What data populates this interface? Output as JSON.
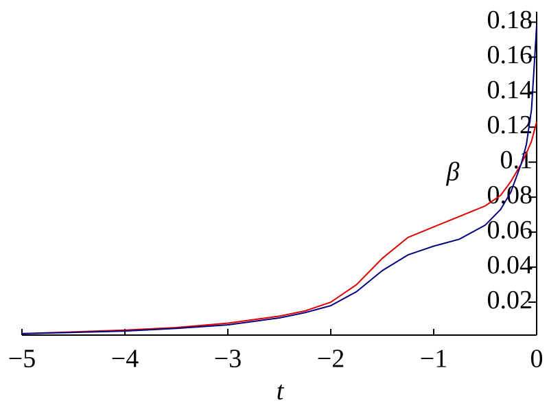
{
  "chart_data": {
    "type": "line",
    "x_label": "t",
    "y_label": "β",
    "x": [
      -5,
      -4.5,
      -4,
      -3.5,
      -3,
      -2.5,
      -2.25,
      -2,
      -1.75,
      -1.5,
      -1.25,
      -1,
      -0.75,
      -0.5,
      -0.35,
      -0.25,
      -0.15,
      -0.1,
      -0.05,
      0
    ],
    "series": [
      {
        "color": "#dd0000",
        "values": [
          0.002,
          0.003,
          0.004,
          0.0055,
          0.008,
          0.012,
          0.015,
          0.02,
          0.03,
          0.045,
          0.057,
          0.063,
          0.069,
          0.075,
          0.081,
          0.089,
          0.099,
          0.105,
          0.112,
          0.123
        ]
      },
      {
        "color": "#00007f",
        "values": [
          0.002,
          0.0027,
          0.0035,
          0.005,
          0.007,
          0.011,
          0.014,
          0.018,
          0.026,
          0.038,
          0.047,
          0.052,
          0.056,
          0.064,
          0.073,
          0.083,
          0.099,
          0.11,
          0.13,
          0.178
        ]
      }
    ],
    "xlim": [
      -5,
      0
    ],
    "ylim": [
      0,
      0.186
    ],
    "xticks": [
      {
        "value": -5,
        "label": "−5"
      },
      {
        "value": -4,
        "label": "−4"
      },
      {
        "value": -3,
        "label": "−3"
      },
      {
        "value": -2,
        "label": "−2"
      },
      {
        "value": -1,
        "label": "−1"
      },
      0
    ],
    "yticks": [
      0.02,
      0.04,
      0.06,
      0.08,
      0.1,
      0.12,
      0.14,
      0.16,
      0.18
    ]
  }
}
